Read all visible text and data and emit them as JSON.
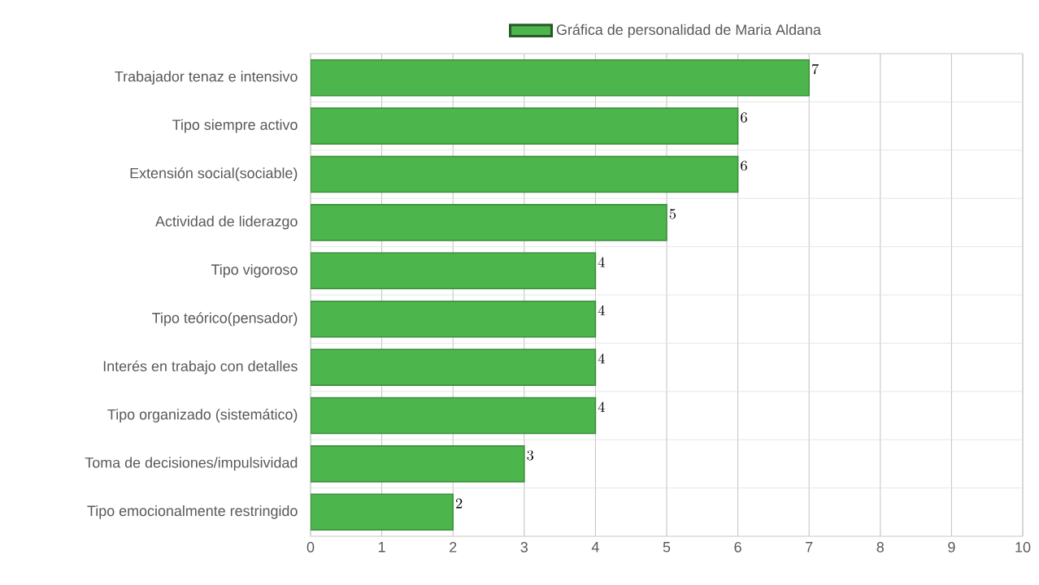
{
  "chart_data": {
    "type": "bar",
    "orientation": "horizontal",
    "categories": [
      "Trabajador tenaz e intensivo",
      "Tipo siempre activo",
      "Extensión social(sociable)",
      "Actividad de liderazgo",
      "Tipo vigoroso",
      "Tipo teórico(pensador)",
      "Interés en trabajo con detalles",
      "Tipo organizado (sistemático)",
      "Toma de decisiones/impulsividad",
      "Tipo emocionalmente restringido"
    ],
    "series": [
      {
        "name": "Gráfica de personalidad de Maria Aldana",
        "color": "#4cb54c",
        "values": [
          7,
          6,
          6,
          5,
          4,
          4,
          4,
          4,
          3,
          2
        ]
      }
    ],
    "xlim": [
      0,
      10
    ],
    "xticks": [
      0,
      1,
      2,
      3,
      4,
      5,
      6,
      7,
      8,
      9,
      10
    ],
    "grid": true,
    "legend": "top",
    "data_labels": true
  }
}
